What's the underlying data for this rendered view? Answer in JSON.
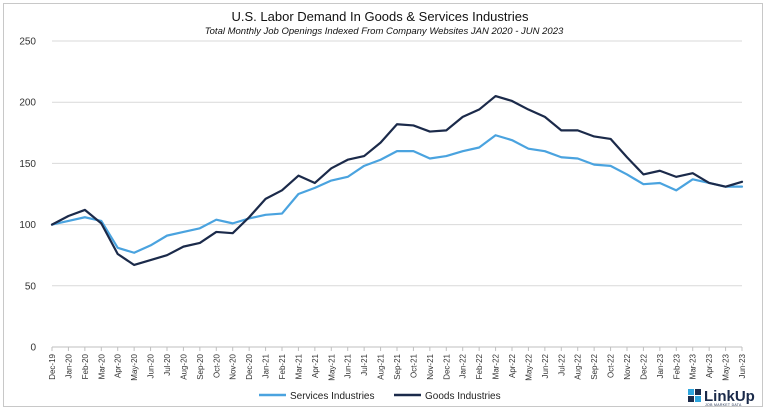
{
  "chart_data": {
    "type": "line",
    "title": "U.S. Labor Demand In Goods & Services Industries",
    "subtitle": "Total Monthly Job Openings Indexed From Company Websites JAN 2020 - JUN 2023",
    "xlabel": "",
    "ylabel": "",
    "ylim": [
      0,
      250
    ],
    "yticks": [
      "0",
      "50",
      "100",
      "150",
      "200",
      "250"
    ],
    "grid": true,
    "legend_position": "bottom",
    "categories": [
      "Dec-19",
      "Jan-20",
      "Feb-20",
      "Mar-20",
      "Apr-20",
      "May-20",
      "Jun-20",
      "Jul-20",
      "Aug-20",
      "Sep-20",
      "Oct-20",
      "Nov-20",
      "Dec-20",
      "Jan-21",
      "Feb-21",
      "Mar-21",
      "Apr-21",
      "May-21",
      "Jun-21",
      "Jul-21",
      "Aug-21",
      "Sep-21",
      "Oct-21",
      "Nov-21",
      "Dec-21",
      "Jan-22",
      "Feb-22",
      "Mar-22",
      "Apr-22",
      "May-22",
      "Jun-22",
      "Jul-22",
      "Aug-22",
      "Sep-22",
      "Oct-22",
      "Nov-22",
      "Dec-22",
      "Jan-23",
      "Feb-23",
      "Mar-23",
      "Apr-23",
      "May-23",
      "Jun-23"
    ],
    "series": [
      {
        "name": "Services Industries",
        "color": "#4aa3df",
        "values": [
          100,
          103,
          106,
          103,
          81,
          77,
          83,
          91,
          94,
          97,
          104,
          101,
          105,
          108,
          109,
          125,
          130,
          136,
          139,
          148,
          153,
          160,
          160,
          154,
          156,
          160,
          163,
          173,
          169,
          162,
          160,
          155,
          154,
          149,
          148,
          141,
          133,
          134,
          128,
          137,
          134,
          131,
          131
        ]
      },
      {
        "name": "Goods Industries",
        "color": "#1b2a4a",
        "values": [
          100,
          107,
          112,
          101,
          76,
          67,
          71,
          75,
          82,
          85,
          94,
          93,
          106,
          121,
          128,
          140,
          134,
          146,
          153,
          156,
          167,
          182,
          181,
          176,
          177,
          188,
          194,
          205,
          201,
          194,
          188,
          177,
          177,
          172,
          170,
          155,
          141,
          144,
          139,
          142,
          134,
          131,
          135
        ]
      }
    ]
  },
  "logo": {
    "name": "LinkUp",
    "tagline": "JOB MARKET DATA"
  }
}
